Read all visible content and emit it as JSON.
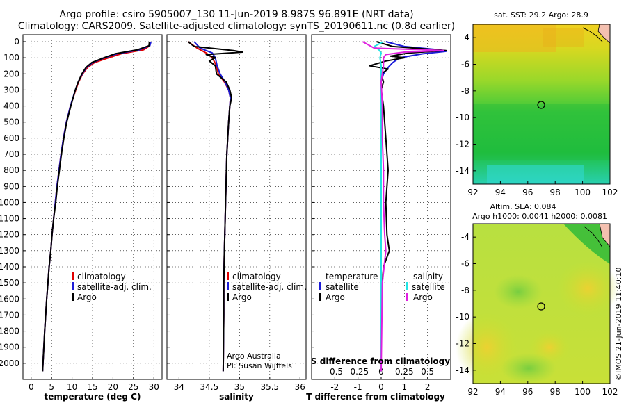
{
  "title": {
    "line1": "Argo profile: csiro 5905007_130 11-Jun-2019 8.987S 96.891E (NRT data)",
    "line2": "Climatology: CARS2009. Satellite-adjusted climatology: synTS_20190611.nc (0.8d earlier)"
  },
  "colors": {
    "climatology": "#e00000",
    "satellite": "#1c1cd8",
    "argo": "#000000",
    "sat_salinity": "#22e4e4",
    "argo_salinity": "#e020e0"
  },
  "depth_axis": {
    "min": 0,
    "max": 2100,
    "ticks": [
      "0",
      "100",
      "200",
      "300",
      "400",
      "500",
      "600",
      "700",
      "800",
      "900",
      "1000",
      "1100",
      "1200",
      "1300",
      "1400",
      "1500",
      "1600",
      "1700",
      "1800",
      "1900",
      "2000"
    ]
  },
  "chart_data": [
    {
      "type": "line",
      "name": "temperature",
      "xlabel": "temperature (deg C)",
      "ylabel": "depth",
      "xlim": [
        -2,
        32
      ],
      "ylim": [
        2100,
        0
      ],
      "xticks": [
        "0",
        "5",
        "10",
        "15",
        "20",
        "25",
        "30"
      ],
      "legend": [
        "climatology",
        "satellite-adj. clim.",
        "Argo"
      ],
      "series": [
        {
          "name": "climatology",
          "depth": [
            0,
            25,
            50,
            75,
            100,
            130,
            160,
            200,
            250,
            300,
            400,
            500,
            600,
            700,
            800,
            900,
            1000,
            1100,
            1200,
            1300,
            1400,
            1500,
            1600,
            1800,
            2000,
            2050
          ],
          "values": [
            29.1,
            29.0,
            27.5,
            22.0,
            19.0,
            15.5,
            13.8,
            12.6,
            11.6,
            10.9,
            9.6,
            8.6,
            7.9,
            7.3,
            6.8,
            6.3,
            5.9,
            5.5,
            5.1,
            4.8,
            4.4,
            4.1,
            3.8,
            3.3,
            2.9,
            2.8
          ]
        },
        {
          "name": "satellite-adj. clim.",
          "depth": [
            0,
            25,
            50,
            75,
            100,
            130,
            160,
            200,
            250,
            300,
            400,
            500,
            600,
            700,
            800,
            900,
            1000,
            1100,
            1200,
            1300,
            1400,
            1500,
            1600,
            1800,
            2000,
            2050
          ],
          "values": [
            29.3,
            29.0,
            26.5,
            21.0,
            18.0,
            15.0,
            13.5,
            12.5,
            11.5,
            10.8,
            9.6,
            8.6,
            7.9,
            7.3,
            6.8,
            6.3,
            5.9,
            5.5,
            5.1,
            4.8,
            4.4,
            4.1,
            3.8,
            3.3,
            2.9,
            2.8
          ]
        },
        {
          "name": "Argo",
          "depth": [
            0,
            25,
            50,
            75,
            100,
            130,
            160,
            200,
            250,
            300,
            400,
            500,
            600,
            700,
            800,
            900,
            1000,
            1100,
            1200,
            1300,
            1400,
            1500,
            1600,
            1800,
            2000,
            2050
          ],
          "values": [
            28.9,
            28.8,
            26.0,
            20.5,
            17.8,
            14.8,
            13.4,
            12.4,
            11.5,
            10.8,
            9.7,
            8.7,
            8.0,
            7.4,
            6.9,
            6.4,
            6.0,
            5.5,
            5.1,
            4.8,
            4.4,
            4.1,
            3.8,
            3.3,
            2.9,
            2.8
          ]
        }
      ]
    },
    {
      "type": "line",
      "name": "salinity",
      "xlabel": "salinity",
      "xlim": [
        33.8,
        36.1
      ],
      "ylim": [
        2100,
        0
      ],
      "xticks": [
        "34",
        "34.5",
        "35",
        "35.5",
        "36"
      ],
      "legend": [
        "climatology",
        "satellite-adj. clim.",
        "Argo"
      ],
      "annotations": [
        "Argo Australia",
        "PI: Susan Wijffels"
      ],
      "series": [
        {
          "name": "climatology",
          "depth": [
            0,
            40,
            70,
            100,
            150,
            200,
            250,
            300,
            350,
            400,
            500,
            700,
            1000,
            1300,
            1500,
            1700,
            2050
          ],
          "values": [
            34.15,
            34.3,
            34.45,
            34.55,
            34.62,
            34.65,
            34.75,
            34.82,
            34.85,
            34.84,
            34.82,
            34.79,
            34.77,
            34.75,
            34.74,
            34.74,
            34.73
          ]
        },
        {
          "name": "satellite-adj. clim.",
          "depth": [
            0,
            40,
            70,
            100,
            150,
            200,
            250,
            300,
            350,
            400,
            500,
            700,
            1000,
            1300,
            1500,
            1700,
            2050
          ],
          "values": [
            34.25,
            34.35,
            34.55,
            34.6,
            34.63,
            34.68,
            34.76,
            34.82,
            34.85,
            34.84,
            34.82,
            34.79,
            34.77,
            34.75,
            34.74,
            34.74,
            34.73
          ]
        },
        {
          "name": "Argo",
          "depth": [
            0,
            30,
            55,
            65,
            80,
            100,
            120,
            150,
            200,
            250,
            300,
            350,
            400,
            500,
            700,
            1000,
            1300,
            1500,
            1700,
            2050
          ],
          "values": [
            34.15,
            34.25,
            34.9,
            35.05,
            34.45,
            34.6,
            34.5,
            34.6,
            34.62,
            34.78,
            34.84,
            34.87,
            34.84,
            34.82,
            34.79,
            34.77,
            34.75,
            34.74,
            34.74,
            34.73
          ]
        }
      ]
    },
    {
      "type": "line",
      "name": "difference",
      "xlabel": "T difference from climatology",
      "xlabel_top": "S difference from climatology",
      "xlim": [
        -3,
        3
      ],
      "ylim": [
        2100,
        0
      ],
      "xticks": [
        "-2",
        "-1",
        "0",
        "1",
        "2"
      ],
      "xticks_top": [
        "-0.5",
        "-0.25",
        "0",
        "0.25",
        "0.5"
      ],
      "legend_left_title": "temperature",
      "legend_right_title": "salinity",
      "legend_left": [
        "satellite",
        "Argo"
      ],
      "legend_right": [
        "satellite",
        "Argo"
      ],
      "series": [
        {
          "name": "temperature satellite",
          "depth": [
            0,
            30,
            50,
            60,
            75,
            100,
            130,
            160,
            200,
            250,
            300,
            500,
            2050
          ],
          "values": [
            0.2,
            1.0,
            2.5,
            2.8,
            1.8,
            0.8,
            0.5,
            0.3,
            0.1,
            0.0,
            0.0,
            0.0,
            0.0
          ]
        },
        {
          "name": "temperature Argo",
          "depth": [
            0,
            30,
            55,
            70,
            90,
            100,
            120,
            150,
            170,
            200,
            250,
            300,
            400,
            600,
            800,
            900,
            1000,
            1200,
            1300,
            1400,
            1600,
            2050
          ],
          "values": [
            -0.2,
            0.5,
            2.8,
            1.2,
            0.4,
            1.0,
            0.2,
            -0.5,
            0.3,
            0.0,
            0.1,
            0.0,
            0.1,
            0.2,
            0.3,
            0.25,
            0.2,
            0.25,
            0.35,
            0.1,
            0.0,
            0.0
          ]
        },
        {
          "name": "salinity satellite",
          "depth": [
            0,
            30,
            50,
            70,
            100,
            150,
            200,
            300,
            500,
            2050
          ],
          "values": [
            0.1,
            -0.3,
            -0.1,
            0.0,
            -0.05,
            0.0,
            0.0,
            0.0,
            0.0,
            0.0
          ]
        },
        {
          "name": "salinity Argo",
          "depth": [
            0,
            40,
            55,
            65,
            80,
            100,
            150,
            250,
            400,
            600,
            800,
            1000,
            1200,
            1300,
            1500,
            2050
          ],
          "values": [
            -0.8,
            -0.3,
            2.7,
            1.0,
            0.2,
            0.1,
            0.1,
            0.0,
            0.05,
            0.05,
            0.1,
            0.1,
            0.15,
            0.2,
            0.05,
            0.0
          ]
        }
      ]
    },
    {
      "type": "heatmap",
      "name": "satellite SST map",
      "title": "sat. SST: 29.2 Argo: 28.9",
      "xlim": [
        92,
        102
      ],
      "ylim": [
        -15,
        -3
      ],
      "xticks": [
        "92",
        "94",
        "96",
        "98",
        "100",
        "102"
      ],
      "yticks": [
        "-4",
        "-6",
        "-8",
        "-10",
        "-12",
        "-14"
      ],
      "marker": {
        "lon": 96.891,
        "lat": -8.987
      }
    },
    {
      "type": "heatmap",
      "name": "altimetry SLA map",
      "title": "Altim. SLA: 0.084",
      "subtitle": "Argo h1000: 0.0041 h2000: 0.0081",
      "xlim": [
        92,
        102
      ],
      "ylim": [
        -15,
        -3
      ],
      "xticks": [
        "92",
        "94",
        "96",
        "98",
        "100",
        "102"
      ],
      "yticks": [
        "-4",
        "-6",
        "-8",
        "-10",
        "-12",
        "-14"
      ],
      "marker": {
        "lon": 96.891,
        "lat": -8.987
      }
    }
  ],
  "credit": "©IMOS 21-Jun-2019 11:40:10"
}
